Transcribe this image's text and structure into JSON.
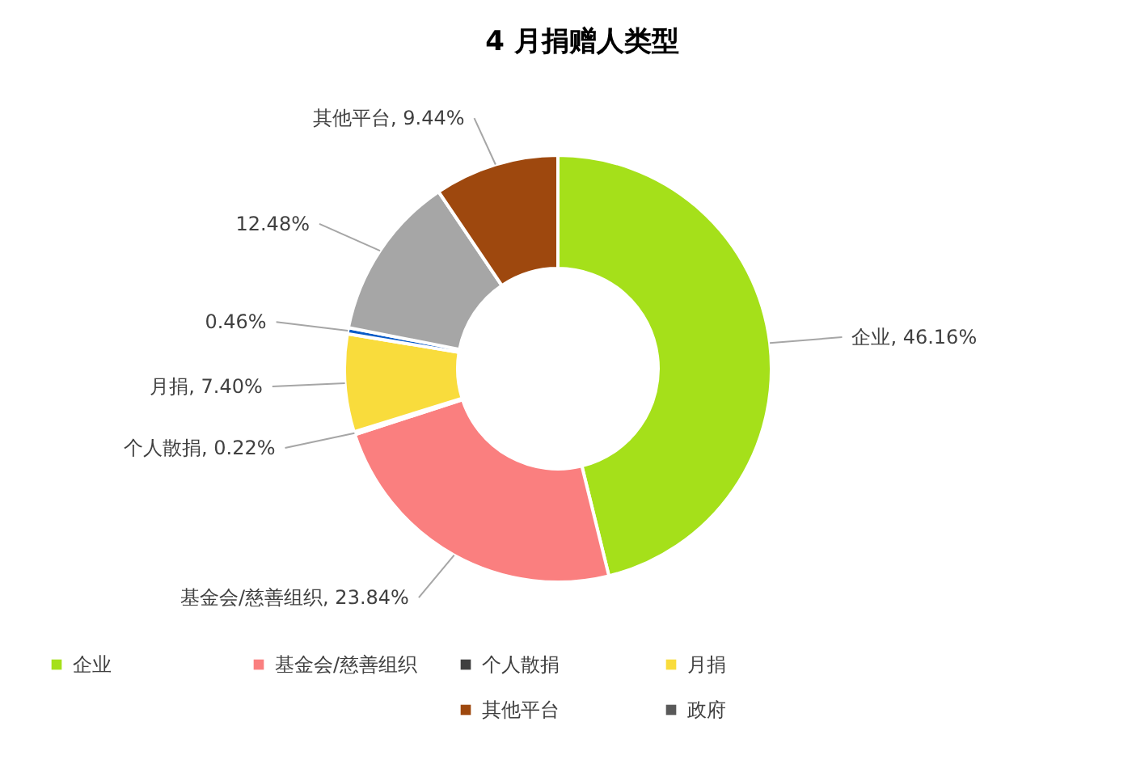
{
  "chart_data": {
    "type": "donut",
    "title": "4 月捐赠人类型",
    "categories": [
      "企业",
      "基金会/慈善组织",
      "个人散捐",
      "月捐",
      null,
      null,
      null,
      "其他平台",
      "政府"
    ],
    "values": [
      46.16,
      23.84,
      0.22,
      7.4,
      0.46,
      12.48,
      0,
      9.44,
      0
    ],
    "colors": [
      "#a5e01a",
      "#fa7f7f",
      "#404040",
      "#f9dc3c",
      "#0a5cc8",
      "#a6a6a6",
      "#33ccff",
      "#9e480e",
      "#595959"
    ],
    "value_labels": [
      "企业, 46.16%",
      "基金会/慈善组织, 23.84%",
      "个人散捐, 0.22%",
      "月捐, 7.40%",
      "0.46%",
      "12.48%",
      null,
      "其他平台, 9.44%",
      null
    ],
    "legend": "bottom"
  }
}
